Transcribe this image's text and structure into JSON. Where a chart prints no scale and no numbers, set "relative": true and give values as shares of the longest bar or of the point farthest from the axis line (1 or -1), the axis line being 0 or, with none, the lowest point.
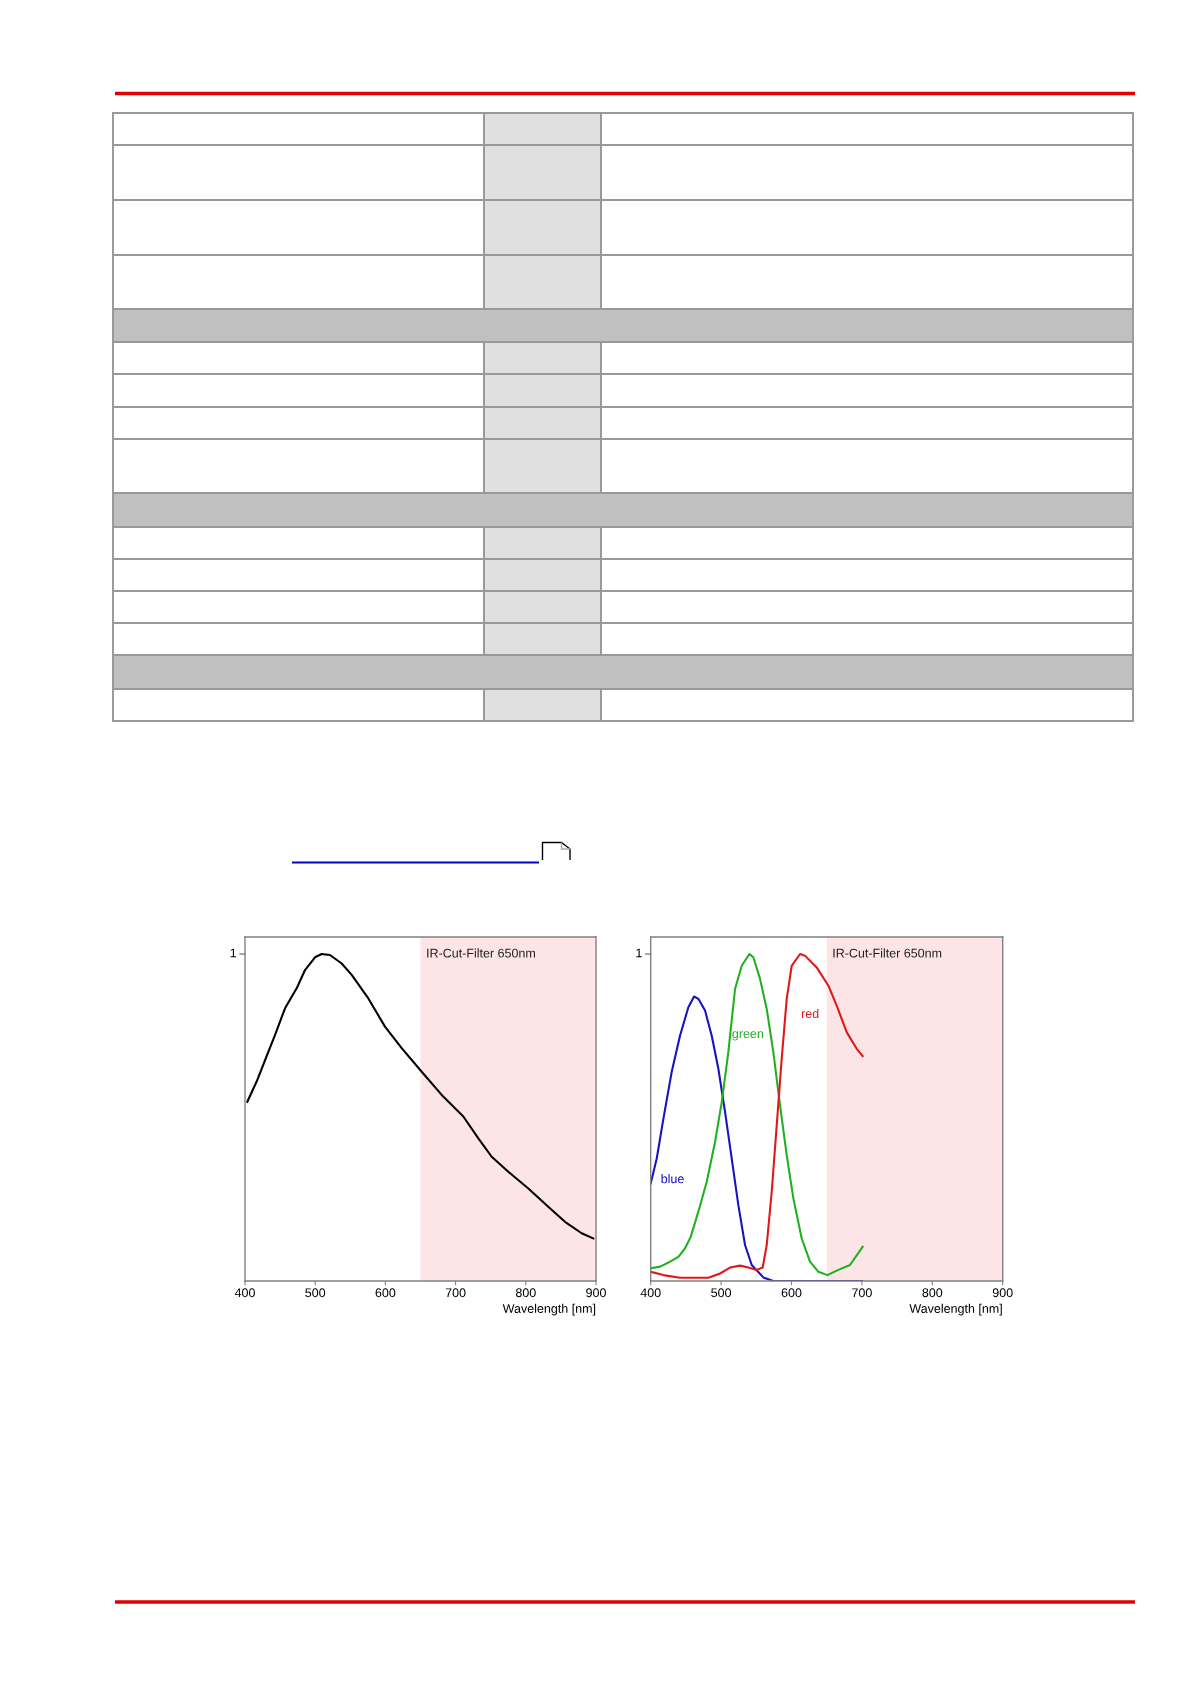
{
  "chart_data": [
    {
      "type": "line",
      "relative": true,
      "xlabel": "Wavelength [nm]",
      "xlim": [
        400,
        900
      ],
      "xticks": [
        400,
        500,
        600,
        700,
        800,
        900
      ],
      "bands": [
        {
          "axis": "x",
          "from": 650,
          "to": 900,
          "label": "IR-Cut-Filter 650nm",
          "color": "#fde4e6"
        }
      ],
      "annotations": [
        "1"
      ],
      "series": [
        {
          "color": "#000000",
          "x": [
            403.3,
            416.6,
            433.2,
            442.7,
            457,
            473.6,
            485.5,
            499.7,
            509.2,
            521,
            537.7,
            552,
            575.7,
            599.4,
            623.2,
            651.7,
            680.2,
            711,
            732.4,
            751.4,
            775.1,
            803.6,
            832,
            855.8,
            879.6,
            896.2
          ],
          "values": [
            0.548,
            0.61,
            0.701,
            0.752,
            0.834,
            0.895,
            0.951,
            0.99,
            1.0,
            0.997,
            0.971,
            0.936,
            0.864,
            0.778,
            0.712,
            0.64,
            0.569,
            0.503,
            0.436,
            0.38,
            0.334,
            0.283,
            0.227,
            0.181,
            0.146,
            0.13
          ]
        }
      ]
    },
    {
      "type": "line",
      "relative": true,
      "xlabel": "Wavelength [nm]",
      "xlim": [
        400,
        900
      ],
      "xticks": [
        400,
        500,
        600,
        700,
        800,
        900
      ],
      "bands": [
        {
          "axis": "x",
          "from": 650,
          "to": 900,
          "label": "IR-Cut-Filter 650nm",
          "color": "#fde4e6"
        }
      ],
      "annotations": [
        "1"
      ],
      "series": [
        {
          "name": "blue",
          "color": "#1414c0",
          "x": [
            400,
            408.5,
            418,
            429.8,
            441.7,
            453.5,
            461.6,
            467.7,
            477.2,
            486.6,
            496.1,
            505.6,
            515.1,
            524.5,
            534,
            543.5,
            560,
            574.2,
            700
          ],
          "values": [
            0.298,
            0.374,
            0.496,
            0.639,
            0.751,
            0.837,
            0.87,
            0.863,
            0.827,
            0.751,
            0.649,
            0.517,
            0.374,
            0.232,
            0.11,
            0.049,
            0.011,
            0,
            0
          ]
        },
        {
          "name": "green",
          "color": "#22b022",
          "x": [
            400,
            413.3,
            427.5,
            439.3,
            448.8,
            456.8,
            467.7,
            479.5,
            491.4,
            500.9,
            510.3,
            519.8,
            529.3,
            540.2,
            545.8,
            555.3,
            564.8,
            574.2,
            583.7,
            593.2,
            602.7,
            614.5,
            626.3,
            638.2,
            651,
            666.6,
            683.1,
            701.1
          ],
          "values": [
            0.039,
            0.044,
            0.059,
            0.074,
            0.1,
            0.135,
            0.212,
            0.303,
            0.425,
            0.547,
            0.7,
            0.893,
            0.964,
            1.0,
            0.99,
            0.924,
            0.832,
            0.7,
            0.537,
            0.385,
            0.252,
            0.13,
            0.059,
            0.028,
            0.018,
            0.034,
            0.049,
            0.105
          ]
        },
        {
          "name": "red",
          "color": "#e01818",
          "x": [
            400,
            418,
            441.7,
            481.9,
            498.5,
            512.7,
            526.9,
            538.7,
            550.6,
            559.1,
            564.8,
            571.9,
            579,
            586.1,
            593.2,
            600.3,
            612.1,
            619.2,
            635.8,
            652.4,
            664.2,
            678.4,
            692.6,
            701.1
          ],
          "values": [
            0.028,
            0.018,
            0.01,
            0.01,
            0.023,
            0.041,
            0.047,
            0.041,
            0.034,
            0.041,
            0.11,
            0.273,
            0.476,
            0.68,
            0.863,
            0.964,
            1.0,
            0.995,
            0.959,
            0.903,
            0.842,
            0.761,
            0.71,
            0.688
          ]
        }
      ]
    }
  ]
}
